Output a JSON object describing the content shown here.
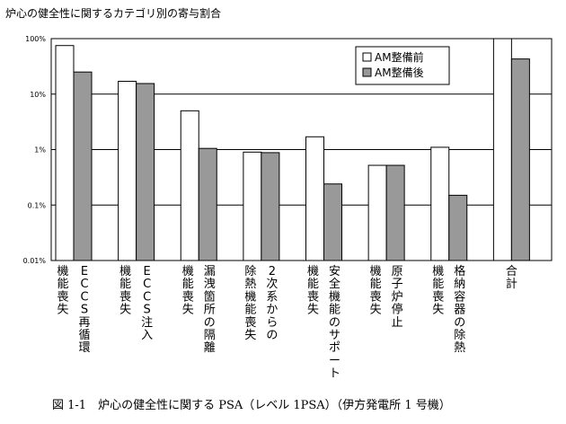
{
  "chart_title": "炉心の健全性に関するカテゴリ別の寄与割合",
  "caption": "図 1-1　炉心の健全性に関する PSA（レベル 1PSA）（伊方発電所 1 号機）",
  "chart_data": {
    "type": "bar",
    "title": "炉心の健全性に関するカテゴリ別の寄与割合",
    "xlabel": "",
    "ylabel": "",
    "y_scale": "log",
    "ylim": [
      0.01,
      100
    ],
    "y_ticks": [
      {
        "value": 100,
        "label": "100%"
      },
      {
        "value": 10,
        "label": "10%"
      },
      {
        "value": 1,
        "label": "1%"
      },
      {
        "value": 0.1,
        "label": "0.1%"
      },
      {
        "value": 0.01,
        "label": "0.01%"
      }
    ],
    "grid": "horizontal",
    "legend_position": "top-right",
    "categories": [
      "ECCS再循環機能喪失",
      "ECCS注入機能喪失",
      "漏洩箇所の隔離機能喪失",
      "2次系からの除熱機能喪失",
      "安全機能のサポート機能喪失",
      "原子炉停止機能喪失",
      "格納容器の除熱機能喪失",
      "合計"
    ],
    "category_label_lines": [
      [
        "機能喪失",
        "ECCS再循環"
      ],
      [
        "機能喪失",
        "ECCS注入"
      ],
      [
        "機能喪失",
        "漏洩箇所の隔離"
      ],
      [
        "除熱機能喪失",
        "2次系からの"
      ],
      [
        "機能喪失",
        "安全機能のサポート"
      ],
      [
        "機能喪失",
        "原子炉停止"
      ],
      [
        "機能喪失",
        "格納容器の除熱"
      ],
      [
        "合計"
      ]
    ],
    "series": [
      {
        "name": "AM整備前",
        "color": "#ffffff",
        "values": [
          75,
          17,
          5,
          0.9,
          1.7,
          0.52,
          1.1,
          100
        ]
      },
      {
        "name": "AM整備後",
        "color": "#999999",
        "values": [
          25,
          15.5,
          1.05,
          0.88,
          0.24,
          0.52,
          0.15,
          43
        ]
      }
    ]
  }
}
